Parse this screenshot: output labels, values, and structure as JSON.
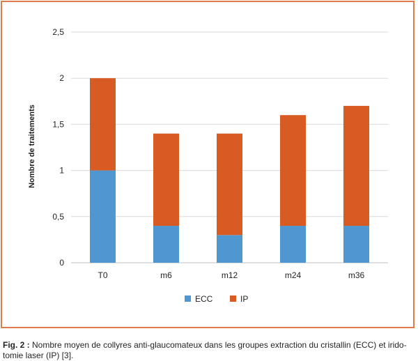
{
  "chart_data": {
    "type": "bar",
    "stacked": true,
    "categories": [
      "T0",
      "m6",
      "m12",
      "m24",
      "m36"
    ],
    "series": [
      {
        "name": "ECC",
        "values": [
          1.0,
          0.4,
          0.3,
          0.4,
          0.4
        ],
        "color": "#4f97d1"
      },
      {
        "name": "IP",
        "values": [
          1.0,
          1.0,
          1.1,
          1.2,
          1.3
        ],
        "color": "#d95b24"
      }
    ],
    "ylabel": "Nombre de traitements",
    "ylim": [
      0,
      2.5
    ],
    "yticks": [
      "0",
      "0,5",
      "1",
      "1,5",
      "2",
      "2,5"
    ],
    "grid": true,
    "legend_position": "bottom"
  },
  "caption": {
    "label": "Fig. 2 :",
    "text": "Nombre moyen de collyres anti-glaucomateux dans les groupes extraction du cristallin (ECC) et irido-tomie laser (IP) [3]."
  }
}
